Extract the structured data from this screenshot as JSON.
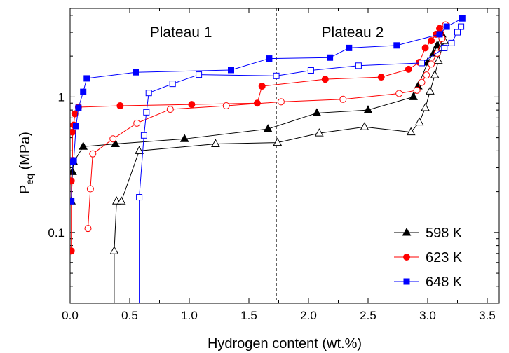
{
  "chart_data": {
    "type": "line",
    "title": "",
    "xlabel": "Hydrogen content (wt.%)",
    "ylabel_main": "P",
    "ylabel_sub": "eq",
    "ylabel_unit": " (MPa)",
    "xlim": [
      0,
      3.6
    ],
    "ylim": [
      0.03,
      4.5
    ],
    "yscale": "log",
    "x_ticks": [
      0.0,
      0.5,
      1.0,
      1.5,
      2.0,
      2.5,
      3.0,
      3.5
    ],
    "x_tick_labels": [
      "0.0",
      "0.5",
      "1.0",
      "1.5",
      "2.0",
      "2.5",
      "3.0",
      "3.5"
    ],
    "y_ticks": [
      0.1,
      1
    ],
    "y_tick_labels": [
      "0.1",
      "1"
    ],
    "grid": false,
    "legend_position": "bottom-right",
    "divider_x": 1.73,
    "annotations": [
      {
        "text": "Plateau 1",
        "x": 0.93,
        "y": 3.0
      },
      {
        "text": "Plateau 2",
        "x": 2.37,
        "y": 3.0
      }
    ],
    "series": [
      {
        "name": "598 K",
        "color": "#000000",
        "marker": "triangle",
        "fill": "filled",
        "direction": "absorption",
        "x": [
          0.01,
          0.02,
          0.03,
          0.11,
          0.38,
          0.96,
          1.66,
          2.07,
          2.5,
          2.88,
          2.92,
          3.0,
          3.05,
          3.08,
          3.12
        ],
        "y": [
          0.17,
          0.28,
          0.33,
          0.43,
          0.45,
          0.49,
          0.58,
          0.76,
          0.8,
          1.0,
          1.2,
          1.8,
          2.1,
          2.4,
          2.9
        ]
      },
      {
        "name": "",
        "color": "#000000",
        "marker": "triangle",
        "fill": "open",
        "direction": "desorption",
        "x": [
          0.37,
          0.37,
          0.39,
          0.43,
          0.58,
          1.22,
          1.74,
          2.09,
          2.47,
          2.86,
          2.93,
          2.98,
          3.02,
          3.06,
          3.09,
          3.12,
          3.14
        ],
        "y": [
          0.03,
          0.073,
          0.17,
          0.17,
          0.4,
          0.45,
          0.46,
          0.54,
          0.6,
          0.55,
          0.65,
          0.83,
          1.1,
          1.45,
          1.85,
          2.3,
          2.6
        ]
      },
      {
        "name": "623 K",
        "color": "#ff0000",
        "marker": "circle",
        "fill": "filled",
        "direction": "absorption",
        "x": [
          0.01,
          0.01,
          0.02,
          0.02,
          0.03,
          0.04,
          0.07,
          0.42,
          1.02,
          1.57,
          1.61,
          2.14,
          2.61,
          2.84,
          2.93,
          2.98,
          3.03,
          3.07,
          3.1
        ],
        "y": [
          0.073,
          0.24,
          0.34,
          0.55,
          0.62,
          0.75,
          0.84,
          0.86,
          0.88,
          0.9,
          1.2,
          1.35,
          1.4,
          1.6,
          1.8,
          2.3,
          2.6,
          2.9,
          3.2
        ]
      },
      {
        "name": "",
        "color": "#ff0000",
        "marker": "circle",
        "fill": "open",
        "direction": "desorption",
        "x": [
          0.15,
          0.15,
          0.17,
          0.19,
          0.36,
          0.56,
          0.84,
          1.31,
          1.77,
          2.29,
          2.76,
          2.91,
          2.95,
          2.99,
          3.03,
          3.08,
          3.12,
          3.15
        ],
        "y": [
          0.03,
          0.107,
          0.21,
          0.38,
          0.49,
          0.64,
          0.81,
          0.86,
          0.92,
          0.96,
          1.06,
          1.12,
          1.28,
          1.45,
          1.75,
          2.1,
          2.7,
          3.4
        ]
      },
      {
        "name": "648 K",
        "color": "#0000ff",
        "marker": "square",
        "fill": "filled",
        "direction": "absorption",
        "x": [
          0.01,
          0.02,
          0.03,
          0.05,
          0.07,
          0.11,
          0.14,
          0.55,
          1.35,
          1.67,
          2.18,
          2.34,
          2.74,
          3.1,
          3.16,
          3.29
        ],
        "y": [
          0.17,
          0.33,
          0.34,
          0.61,
          0.83,
          1.09,
          1.37,
          1.52,
          1.58,
          1.92,
          1.95,
          2.3,
          2.4,
          2.9,
          3.3,
          3.8
        ]
      },
      {
        "name": "",
        "color": "#0000ff",
        "marker": "square",
        "fill": "open",
        "direction": "desorption",
        "x": [
          0.58,
          0.58,
          0.62,
          0.64,
          0.66,
          0.86,
          1.08,
          1.73,
          2.02,
          2.42,
          2.95,
          3.14,
          3.2,
          3.25,
          3.28
        ],
        "y": [
          0.03,
          0.182,
          0.52,
          0.77,
          1.07,
          1.25,
          1.46,
          1.43,
          1.57,
          1.7,
          1.78,
          2.3,
          2.5,
          3.0,
          3.3
        ]
      }
    ]
  }
}
